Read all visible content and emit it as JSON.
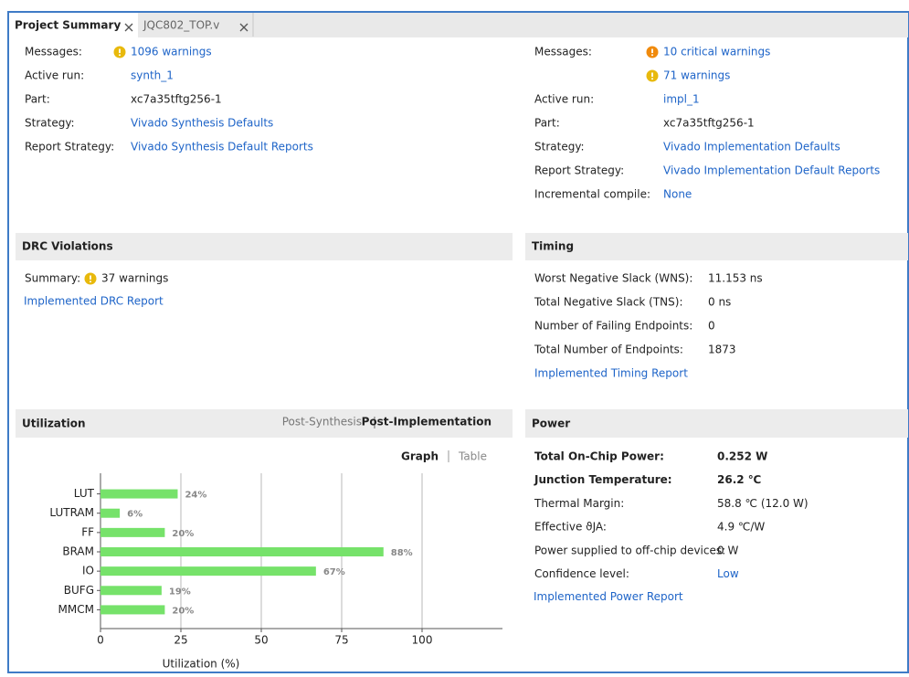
{
  "tabs": [
    "Project Summary",
    "JQC802_TOP.v"
  ],
  "synthesis": [
    {
      "label": "Messages:",
      "value": "1096 warnings",
      "icon": "warning",
      "link": true
    },
    {
      "label": "Active run:",
      "value": "synth_1",
      "link": true
    },
    {
      "label": "Part:",
      "value": "xc7a35tftg256-1"
    },
    {
      "label": "Strategy:",
      "value": "Vivado Synthesis Defaults",
      "link": true
    },
    {
      "label": "Report Strategy:",
      "value": "Vivado Synthesis Default Reports",
      "link": true
    }
  ],
  "implementation": [
    {
      "label": "Messages:",
      "value": "10 critical warnings",
      "icon": "critical",
      "link": true
    },
    {
      "label": null,
      "value": "71 warnings",
      "icon": "warning",
      "link": true
    },
    {
      "label": "Active run:",
      "value": "impl_1",
      "link": true
    },
    {
      "label": "Part:",
      "value": "xc7a35tftg256-1"
    },
    {
      "label": "Strategy:",
      "value": "Vivado Implementation Defaults",
      "link": true
    },
    {
      "label": "Report Strategy:",
      "value": "Vivado Implementation Default Reports",
      "link": true
    },
    {
      "label": "Incremental compile:",
      "value": "None",
      "link": true
    }
  ],
  "drc": {
    "title": "DRC Violations",
    "rows": [
      {
        "label": "Summary:",
        "value": "37 warnings",
        "icon": "warning"
      }
    ],
    "link": "Implemented DRC Report"
  },
  "timing": {
    "title": "Timing",
    "rows": [
      {
        "label": "Worst Negative Slack (WNS):",
        "value": "11.153 ns"
      },
      {
        "label": "Total Negative Slack (TNS):",
        "value": "0 ns"
      },
      {
        "label": "Number of Failing Endpoints:",
        "value": "0"
      },
      {
        "label": "Total Number of Endpoints:",
        "value": "1873"
      }
    ],
    "link": "Implemented Timing Report"
  },
  "power": {
    "title": "Power",
    "rows": [
      {
        "label": "Total On-Chip Power:",
        "value": "0.252 W",
        "bold": true
      },
      {
        "label": "Junction Temperature:",
        "value": "26.2 ℃",
        "bold": true
      },
      {
        "label": "Thermal Margin:",
        "value": "58.8 ℃ (12.0 W)"
      },
      {
        "label": "Effective ϑJA:",
        "value": "4.9 ℃/W"
      },
      {
        "label": "Power supplied to off-chip devices:",
        "value": "0 W"
      },
      {
        "label": "Confidence level:",
        "value": "Low",
        "link": true
      }
    ],
    "link": "Implemented Power Report"
  },
  "utilization": {
    "title": "Utilization",
    "views": [
      "Post-Synthesis",
      "Post-Implementation"
    ],
    "active_view": 1,
    "modes": [
      "Graph",
      "Table"
    ],
    "active_mode": 0
  },
  "chart_data": {
    "type": "bar",
    "orientation": "horizontal",
    "categories": [
      "LUT",
      "LUTRAM",
      "FF",
      "BRAM",
      "IO",
      "BUFG",
      "MMCM"
    ],
    "values": [
      24,
      6,
      20,
      88,
      67,
      19,
      20
    ],
    "value_labels": [
      "24%",
      "6%",
      "20%",
      "88%",
      "67%",
      "19%",
      "20%"
    ],
    "color": "#76e26a",
    "xlabel": "Utilization (%)",
    "xlim": [
      0,
      125
    ],
    "xticks": [
      0,
      25,
      50,
      75,
      100
    ],
    "grid": true
  }
}
